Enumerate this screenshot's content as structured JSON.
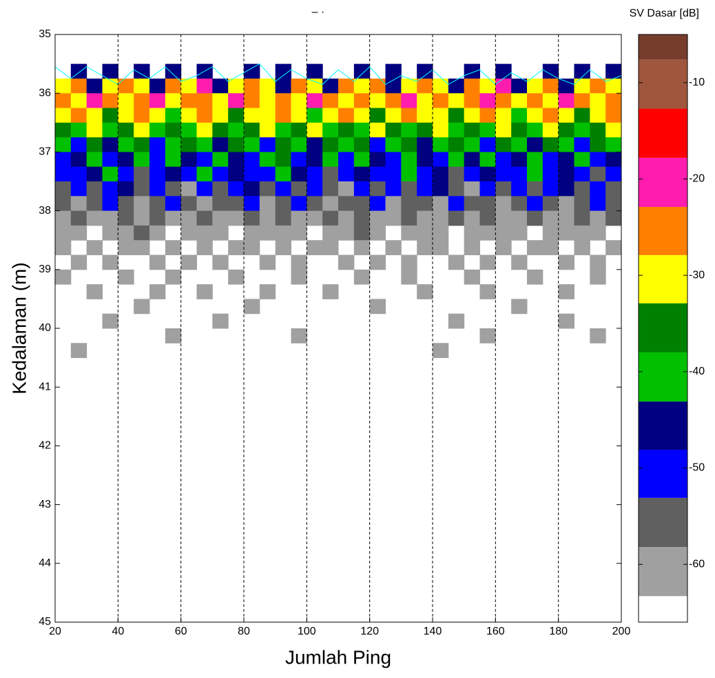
{
  "chart_data": {
    "type": "heatmap",
    "title": "‒ ·",
    "xlabel": "Jumlah Ping",
    "ylabel": "Kedalaman (m)",
    "xlim": [
      20,
      200
    ],
    "ylim": [
      35,
      45
    ],
    "xticks": [
      20,
      40,
      60,
      80,
      100,
      120,
      140,
      160,
      180,
      200
    ],
    "yticks": [
      35,
      36,
      37,
      38,
      39,
      40,
      41,
      42,
      43,
      44,
      45
    ],
    "grid": "x",
    "x": [
      20,
      25,
      30,
      35,
      40,
      45,
      50,
      55,
      60,
      65,
      70,
      75,
      80,
      85,
      90,
      95,
      100,
      105,
      110,
      115,
      120,
      125,
      130,
      135,
      140,
      145,
      150,
      155,
      160,
      165,
      170,
      175,
      180,
      185,
      190,
      195
    ],
    "y": [
      35.5,
      35.75,
      36,
      36.25,
      36.5,
      36.75,
      37,
      37.25,
      37.5,
      37.75,
      38,
      38.25,
      38.5,
      38.75,
      39,
      39.25,
      39.5,
      39.75,
      40,
      40.25
    ],
    "z": [
      [
        null,
        -45,
        null,
        -45,
        null,
        -45,
        null,
        -45,
        null,
        -45,
        null,
        null,
        -45,
        null,
        -45,
        null,
        -45,
        null,
        null,
        -45,
        null,
        -45,
        null,
        -45,
        null,
        null,
        -45,
        null,
        -45,
        null,
        null,
        -45,
        null,
        -45,
        null,
        -45
      ],
      [
        -30,
        -25,
        -45,
        -30,
        -25,
        -30,
        -45,
        -25,
        -30,
        -20,
        -45,
        -30,
        -25,
        -30,
        -45,
        -25,
        -30,
        -45,
        -25,
        -30,
        -25,
        -45,
        -30,
        -25,
        -30,
        -45,
        -25,
        -30,
        -20,
        -45,
        -30,
        -25,
        -45,
        -30,
        -25,
        -30
      ],
      [
        -25,
        -30,
        -20,
        -25,
        -30,
        -25,
        -20,
        -30,
        -25,
        -25,
        -30,
        -20,
        -25,
        -30,
        -25,
        -30,
        -20,
        -25,
        -30,
        -25,
        -30,
        -25,
        -20,
        -30,
        -25,
        -30,
        -25,
        -20,
        -25,
        -30,
        -25,
        -30,
        -20,
        -25,
        -30,
        -25
      ],
      [
        -30,
        -25,
        -30,
        -35,
        -30,
        -25,
        -30,
        -40,
        -30,
        -25,
        -30,
        -35,
        -30,
        -30,
        -25,
        -30,
        -40,
        -30,
        -25,
        -30,
        -35,
        -30,
        -25,
        -30,
        -30,
        -35,
        -30,
        -25,
        -30,
        -40,
        -30,
        -25,
        -30,
        -35,
        -30,
        -25
      ],
      [
        -35,
        -40,
        -30,
        -40,
        -35,
        -30,
        -40,
        -35,
        -40,
        -30,
        -35,
        -40,
        -35,
        -30,
        -40,
        -35,
        -30,
        -40,
        -35,
        -40,
        -30,
        -35,
        -40,
        -35,
        -30,
        -40,
        -35,
        -40,
        -30,
        -35,
        -40,
        -30,
        -35,
        -40,
        -35,
        -30
      ],
      [
        -40,
        -50,
        -35,
        -45,
        -40,
        -35,
        -50,
        -40,
        -35,
        -40,
        -45,
        -35,
        -40,
        -50,
        -35,
        -40,
        -45,
        -35,
        -40,
        -35,
        -50,
        -40,
        -35,
        -45,
        -40,
        -35,
        -40,
        -50,
        -35,
        -40,
        -45,
        -35,
        -40,
        -50,
        -35,
        -40
      ],
      [
        -50,
        -45,
        -40,
        -50,
        -45,
        -40,
        -50,
        -40,
        -45,
        -50,
        -40,
        -45,
        -50,
        -40,
        -35,
        -50,
        -45,
        -40,
        -50,
        -40,
        -45,
        -50,
        -40,
        -45,
        -50,
        -40,
        -45,
        -40,
        -50,
        -45,
        -40,
        -50,
        -45,
        -40,
        -50,
        -45
      ],
      [
        -50,
        -50,
        -45,
        -40,
        -50,
        -55,
        -50,
        -45,
        -50,
        -40,
        -50,
        -45,
        -50,
        -50,
        -40,
        -45,
        -50,
        -55,
        -50,
        -45,
        -50,
        -50,
        -40,
        -50,
        -45,
        -55,
        -50,
        -45,
        -50,
        -50,
        -40,
        -50,
        -45,
        -50,
        -55,
        -50
      ],
      [
        -55,
        -50,
        -55,
        -50,
        -45,
        -55,
        -50,
        -55,
        -60,
        -50,
        -55,
        -50,
        -45,
        -55,
        -50,
        -55,
        -50,
        -55,
        -60,
        -50,
        -55,
        -50,
        -55,
        -50,
        -45,
        -55,
        -60,
        -50,
        -55,
        -50,
        -55,
        -50,
        -45,
        -55,
        -50,
        -55
      ],
      [
        -55,
        -60,
        -55,
        -50,
        -55,
        -60,
        -55,
        -50,
        -55,
        -60,
        -55,
        -55,
        -50,
        -60,
        -55,
        -50,
        -55,
        -60,
        -55,
        -55,
        -50,
        -60,
        -55,
        -55,
        -60,
        -50,
        -55,
        -55,
        -60,
        -55,
        -50,
        -55,
        -60,
        -55,
        -50,
        -55
      ],
      [
        -60,
        -55,
        -60,
        -60,
        -55,
        -60,
        -55,
        -60,
        -60,
        -55,
        -60,
        -60,
        -55,
        -60,
        -55,
        -60,
        -60,
        -55,
        -60,
        -55,
        -60,
        -60,
        -55,
        -60,
        -60,
        -55,
        -60,
        -55,
        -60,
        -60,
        -55,
        -60,
        -60,
        -55,
        -60,
        -55
      ],
      [
        -60,
        -60,
        null,
        -60,
        -60,
        -55,
        -60,
        null,
        -60,
        -60,
        -60,
        null,
        -60,
        -60,
        -60,
        -60,
        null,
        -60,
        -60,
        -55,
        -60,
        null,
        -60,
        -60,
        -60,
        null,
        -60,
        -60,
        -60,
        -60,
        null,
        -60,
        -60,
        -60,
        -60,
        null
      ],
      [
        -60,
        null,
        -60,
        null,
        -60,
        -60,
        null,
        -60,
        null,
        -60,
        null,
        -60,
        -60,
        null,
        -60,
        null,
        -60,
        -60,
        null,
        -60,
        null,
        -60,
        null,
        -60,
        -60,
        null,
        -60,
        null,
        -60,
        null,
        -60,
        -60,
        null,
        -60,
        null,
        -60
      ],
      [
        null,
        -60,
        null,
        -60,
        null,
        null,
        -60,
        null,
        -60,
        null,
        -60,
        null,
        null,
        -60,
        null,
        -60,
        null,
        null,
        -60,
        null,
        -60,
        null,
        -60,
        null,
        null,
        -60,
        null,
        -60,
        null,
        -60,
        null,
        null,
        -60,
        null,
        -60,
        null
      ],
      [
        -60,
        null,
        null,
        null,
        -60,
        null,
        null,
        -60,
        null,
        null,
        null,
        -60,
        null,
        null,
        null,
        -60,
        null,
        null,
        null,
        -60,
        null,
        null,
        -60,
        null,
        null,
        null,
        -60,
        null,
        null,
        null,
        -60,
        null,
        null,
        null,
        -60,
        null
      ],
      [
        null,
        null,
        -60,
        null,
        null,
        null,
        -60,
        null,
        null,
        -60,
        null,
        null,
        null,
        -60,
        null,
        null,
        null,
        -60,
        null,
        null,
        null,
        null,
        null,
        -60,
        null,
        null,
        null,
        -60,
        null,
        null,
        null,
        null,
        -60,
        null,
        null,
        null
      ],
      [
        null,
        null,
        null,
        null,
        null,
        -60,
        null,
        null,
        null,
        null,
        null,
        null,
        -60,
        null,
        null,
        null,
        null,
        null,
        null,
        null,
        -60,
        null,
        null,
        null,
        null,
        null,
        null,
        null,
        null,
        -60,
        null,
        null,
        null,
        null,
        null,
        null
      ],
      [
        null,
        null,
        null,
        -60,
        null,
        null,
        null,
        null,
        null,
        null,
        -60,
        null,
        null,
        null,
        null,
        null,
        null,
        null,
        null,
        null,
        null,
        null,
        null,
        null,
        null,
        -60,
        null,
        null,
        null,
        null,
        null,
        null,
        -60,
        null,
        null,
        null
      ],
      [
        null,
        null,
        null,
        null,
        null,
        null,
        null,
        -60,
        null,
        null,
        null,
        null,
        null,
        null,
        null,
        -60,
        null,
        null,
        null,
        null,
        null,
        null,
        null,
        null,
        null,
        null,
        null,
        -60,
        null,
        null,
        null,
        null,
        null,
        null,
        -60,
        null
      ],
      [
        null,
        -60,
        null,
        null,
        null,
        null,
        null,
        null,
        null,
        null,
        null,
        null,
        null,
        null,
        null,
        null,
        null,
        null,
        null,
        null,
        null,
        null,
        null,
        null,
        -60,
        null,
        null,
        null,
        null,
        null,
        null,
        null,
        null,
        null,
        null,
        null
      ]
    ],
    "bottom_line": {
      "color": "#00ffff",
      "x": [
        20,
        25,
        30,
        35,
        40,
        45,
        50,
        55,
        60,
        65,
        70,
        75,
        80,
        85,
        90,
        95,
        100,
        105,
        110,
        115,
        120,
        125,
        130,
        135,
        140,
        145,
        150,
        155,
        160,
        165,
        170,
        175,
        180,
        185,
        190,
        195,
        200
      ],
      "values": [
        35.55,
        35.75,
        35.55,
        35.7,
        35.85,
        35.6,
        35.75,
        35.55,
        35.8,
        35.7,
        35.55,
        35.8,
        35.65,
        35.5,
        35.8,
        35.6,
        35.75,
        35.85,
        35.6,
        35.8,
        35.55,
        35.85,
        35.7,
        35.8,
        35.6,
        35.85,
        35.7,
        35.6,
        35.85,
        35.65,
        35.8,
        35.6,
        35.75,
        35.85,
        35.6,
        35.8,
        35.7
      ]
    },
    "colorbar": {
      "label": "SV Dasar [dB]",
      "levels": [
        -66,
        -63.3,
        -58.2,
        -53.1,
        -48.1,
        -43.1,
        -38,
        -32.9,
        -27.9,
        -22.9,
        -17.8,
        -12.7,
        -7.6,
        -5
      ],
      "colors": [
        "#ffffff",
        "#a0a0a0",
        "#606060",
        "#0000ff",
        "#000080",
        "#00c000",
        "#008000",
        "#ffff00",
        "#ff8000",
        "#ff1cae",
        "#ff0000",
        "#a0563d",
        "#763c2c"
      ],
      "ticks": [
        -10,
        -20,
        -30,
        -40,
        -50,
        -60
      ]
    }
  }
}
